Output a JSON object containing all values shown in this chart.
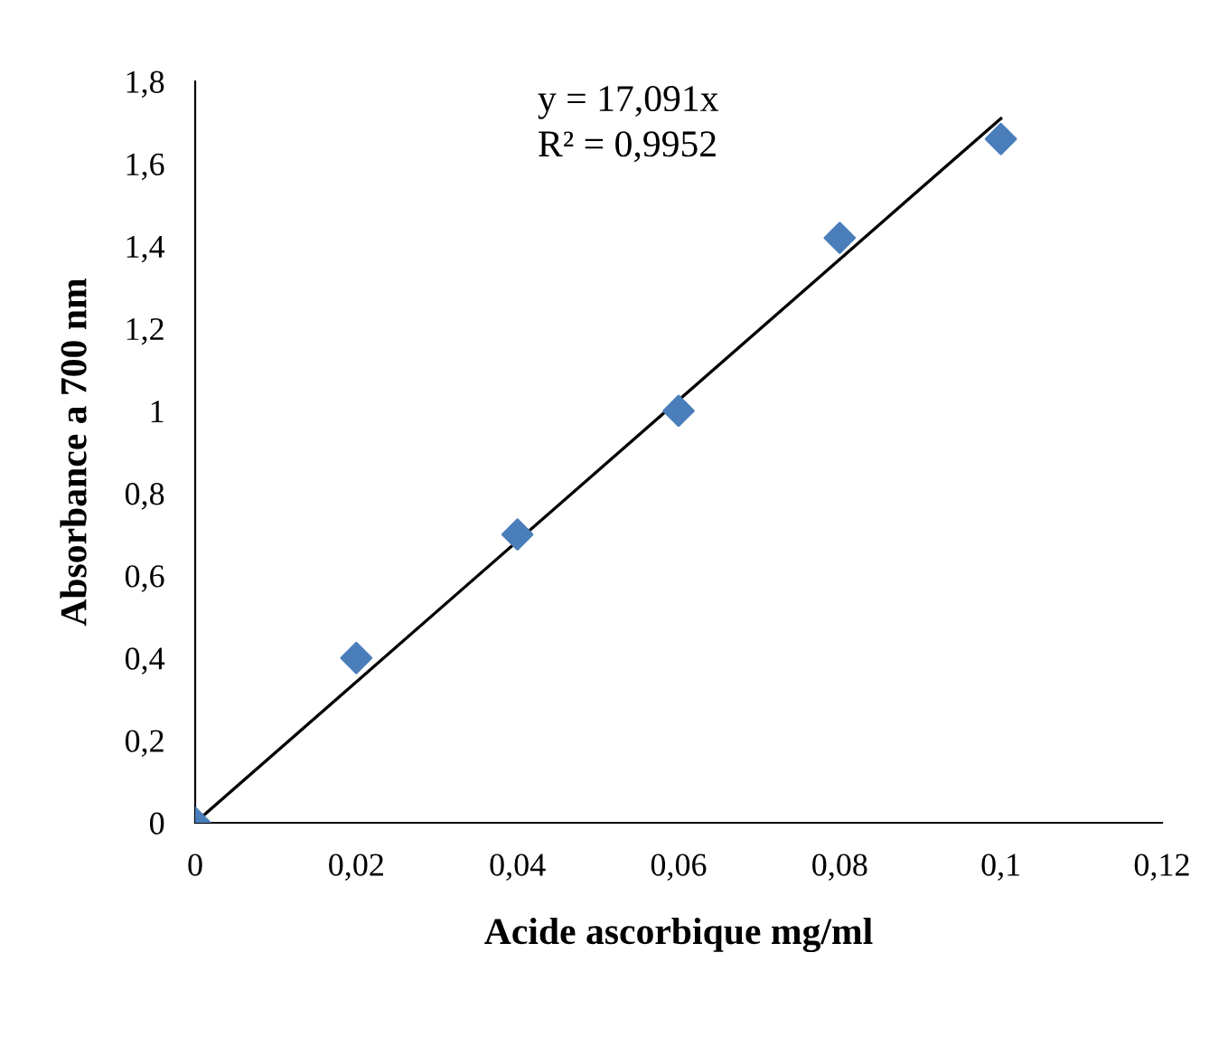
{
  "chart_data": {
    "type": "scatter",
    "xlabel": "Acide ascorbique mg/ml",
    "ylabel": "Absorbance a 700 nm",
    "annotations": [
      "y = 17,091x",
      "R² = 0,9952"
    ],
    "series": [
      {
        "color": "#4a7ebb",
        "marker": "diamond",
        "x": [
          0,
          0.02,
          0.04,
          0.06,
          0.08,
          0.1
        ],
        "values": [
          0,
          0.4,
          0.7,
          1.0,
          1.42,
          1.66
        ]
      },
      {
        "type": "line",
        "color": "#000000",
        "marker": "none",
        "line_style": "solid",
        "x": [
          0,
          0.1
        ],
        "values": [
          0,
          1.71
        ]
      }
    ],
    "xlim": [
      0,
      0.12
    ],
    "xticks": [
      0,
      {
        "value": 0.02,
        "label": "0,02"
      },
      {
        "value": 0.04,
        "label": "0,04"
      },
      {
        "value": 0.06,
        "label": "0,06"
      },
      {
        "value": 0.08,
        "label": "0,08"
      },
      {
        "value": 0.1,
        "label": "0,1"
      },
      {
        "value": 0.12,
        "label": "0,12"
      }
    ],
    "ylim": [
      0,
      1.8
    ],
    "yticks": [
      0,
      {
        "value": 0.2,
        "label": "0,2"
      },
      {
        "value": 0.4,
        "label": "0,4"
      },
      {
        "value": 0.6,
        "label": "0,6"
      },
      {
        "value": 0.8,
        "label": "0,8"
      },
      1,
      {
        "value": 1.2,
        "label": "1,2"
      },
      {
        "value": 1.4,
        "label": "1,4"
      },
      {
        "value": 1.6,
        "label": "1,6"
      },
      {
        "value": 1.8,
        "label": "1,8"
      }
    ],
    "grid": false,
    "legend": false
  }
}
